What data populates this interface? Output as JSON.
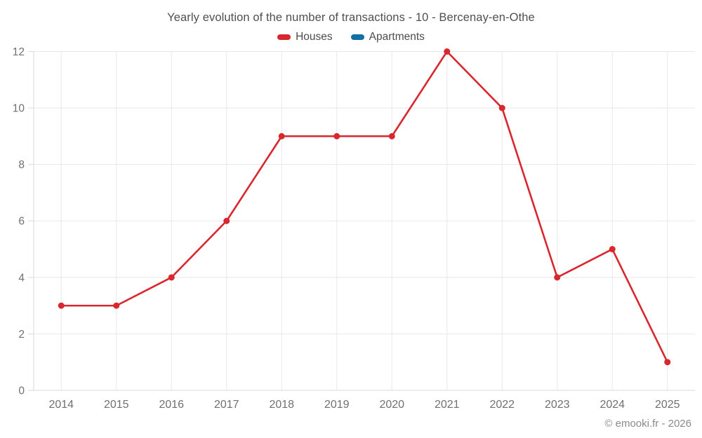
{
  "title": "Yearly evolution of the number of transactions - 10 - Bercenay-en-Othe",
  "legend": {
    "items": [
      {
        "label": "Houses",
        "color": "#d9272e"
      },
      {
        "label": "Apartments",
        "color": "#1270a2"
      }
    ]
  },
  "copyright": "© emooki.fr - 2026",
  "colors": {
    "background": "#ffffff",
    "grid": "#e8e8e8",
    "axis": "#d9d9d9",
    "tick_label": "#707070",
    "title_text": "#4f4f4f",
    "legend_text": "#4c4c4c",
    "copyright_text": "#8a8a8a"
  },
  "chart_data": {
    "type": "line",
    "title": "Yearly evolution of the number of transactions - 10 - Bercenay-en-Othe",
    "categories": [
      "2014",
      "2015",
      "2016",
      "2017",
      "2018",
      "2019",
      "2020",
      "2021",
      "2022",
      "2023",
      "2024",
      "2025"
    ],
    "series": [
      {
        "name": "Houses",
        "color": "#d9272e",
        "values": [
          3,
          3,
          4,
          6,
          9,
          9,
          9,
          12,
          10,
          4,
          5,
          1
        ]
      },
      {
        "name": "Apartments",
        "color": "#1270a2",
        "values": []
      }
    ],
    "xlabel": "",
    "ylabel": "",
    "ylim": [
      0,
      12
    ],
    "yticks": [
      0,
      2,
      4,
      6,
      8,
      10,
      12
    ],
    "grid": true,
    "legend_position": "top",
    "marker_radius": 4.5,
    "line_width": 2.6
  }
}
